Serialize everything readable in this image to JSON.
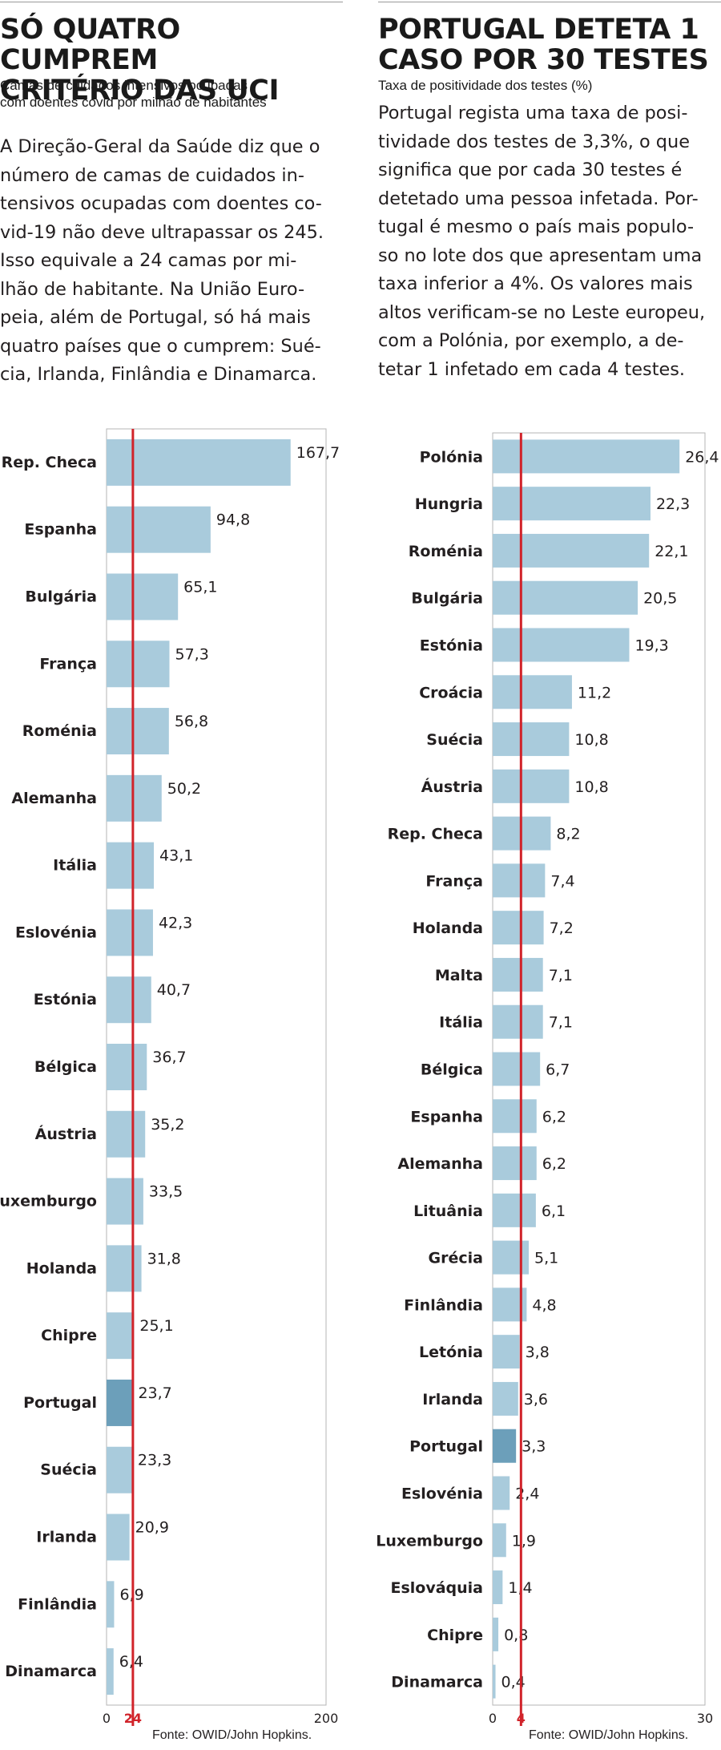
{
  "left": {
    "headline": "SÓ QUATRO CUMPREM\nCRITÉRIO DAS UCI",
    "subtitle": "Camas de cuidados intensivos ocupadas\ncom doentes covid por milhão de habitantes",
    "body": "A Direção-Geral da Saúde diz que o\nnúmero de camas de cuidados in-\ntensivos ocupadas com doentes co-\nvid-19 não deve ultrapassar os 245.\nIsso equivale a 24  camas por mi-\nlhão de habitante. Na União Euro-\npeia, além de Portugal, só há mais\nquatro países que o cumprem: Sué-\ncia, Irlanda, Finlândia e Dinamarca.",
    "source": "Fonte: OWID/John Hopkins."
  },
  "right": {
    "headline": "PORTUGAL DETETA 1\nCASO POR 30 TESTES",
    "subtitle": "Taxa de positividade dos testes (%)",
    "body": "Portugal regista uma taxa de posi-\ntividade dos testes de 3,3%, o que\nsignifica que por cada 30 testes é\ndetetado uma pessoa infetada. Por-\ntugal é mesmo o país mais populo-\nso no lote dos que apresentam uma\ntaxa inferior a 4%. Os valores mais\naltos verificam-se no Leste europeu,\ncom a Polónia, por exemplo, a de-\ntetar 1 infetado em cada 4 testes.",
    "source": "Fonte: OWID/John Hopkins."
  },
  "colors": {
    "bar": "#a9cbdc",
    "highlight_bar": "#6c9fba",
    "reference_line": "#d1232a",
    "frame": "#b5b5b5",
    "text": "#231f20"
  },
  "chart_data": [
    {
      "type": "bar",
      "orientation": "horizontal",
      "title": "SÓ QUATRO CUMPREM CRITÉRIO DAS UCI",
      "subtitle": "Camas de cuidados intensivos ocupadas com doentes covid por milhão de habitantes",
      "categories": [
        "Rep. Checa",
        "Espanha",
        "Bulgária",
        "França",
        "Roménia",
        "Alemanha",
        "Itália",
        "Eslovénia",
        "Estónia",
        "Bélgica",
        "Áustria",
        "Luxemburgo",
        "Holanda",
        "Chipre",
        "Portugal",
        "Suécia",
        "Irlanda",
        "Finlândia",
        "Dinamarca"
      ],
      "values": [
        167.7,
        94.8,
        65.1,
        57.3,
        56.8,
        50.2,
        43.1,
        42.3,
        40.7,
        36.7,
        35.2,
        33.5,
        31.8,
        25.1,
        23.7,
        23.3,
        20.9,
        6.9,
        6.4
      ],
      "value_labels": [
        "167,7",
        "94,8",
        "65,1",
        "57,3",
        "56,8",
        "50,2",
        "43,1",
        "42,3",
        "40,7",
        "36,7",
        "35,2",
        "33,5",
        "31,8",
        "25,1",
        "23,7",
        "23,3",
        "20,9",
        "6,9",
        "6,4"
      ],
      "highlight": "Portugal",
      "xlim": [
        0,
        200
      ],
      "xticks": [
        0,
        200
      ],
      "xtick_labels": [
        "0",
        "200"
      ],
      "reference": {
        "value": 24,
        "label": "24"
      },
      "source": "Fonte: OWID/John Hopkins."
    },
    {
      "type": "bar",
      "orientation": "horizontal",
      "title": "PORTUGAL DETETA 1 CASO POR 30 TESTES",
      "subtitle": "Taxa de positividade dos testes (%)",
      "categories": [
        "Polónia",
        "Hungria",
        "Roménia",
        "Bulgária",
        "Estónia",
        "Croácia",
        "Suécia",
        "Áustria",
        "Rep. Checa",
        "França",
        "Holanda",
        "Malta",
        "Itália",
        "Bélgica",
        "Espanha",
        "Alemanha",
        "Lituânia",
        "Grécia",
        "Finlândia",
        "Letónia",
        "Irlanda",
        "Portugal",
        "Eslovénia",
        "Luxemburgo",
        "Eslováquia",
        "Chipre",
        "Dinamarca"
      ],
      "values": [
        26.4,
        22.3,
        22.1,
        20.5,
        19.3,
        11.2,
        10.8,
        10.8,
        8.2,
        7.4,
        7.2,
        7.1,
        7.1,
        6.7,
        6.2,
        6.2,
        6.1,
        5.1,
        4.8,
        3.8,
        3.6,
        3.3,
        2.4,
        1.9,
        1.4,
        0.8,
        0.4
      ],
      "value_labels": [
        "26,4",
        "22,3",
        "22,1",
        "20,5",
        "19,3",
        "11,2",
        "10,8",
        "10,8",
        "8,2",
        "7,4",
        "7,2",
        "7,1",
        "7,1",
        "6,7",
        "6,2",
        "6,2",
        "6,1",
        "5,1",
        "4,8",
        "3,8",
        "3,6",
        "3,3",
        "2,4",
        "1,9",
        "1,4",
        "0,8",
        "0,4"
      ],
      "highlight": "Portugal",
      "xlim": [
        0,
        30
      ],
      "xticks": [
        0,
        30
      ],
      "xtick_labels": [
        "0",
        "30"
      ],
      "reference": {
        "value": 4,
        "label": "4"
      },
      "source": "Fonte: OWID/John Hopkins."
    }
  ]
}
